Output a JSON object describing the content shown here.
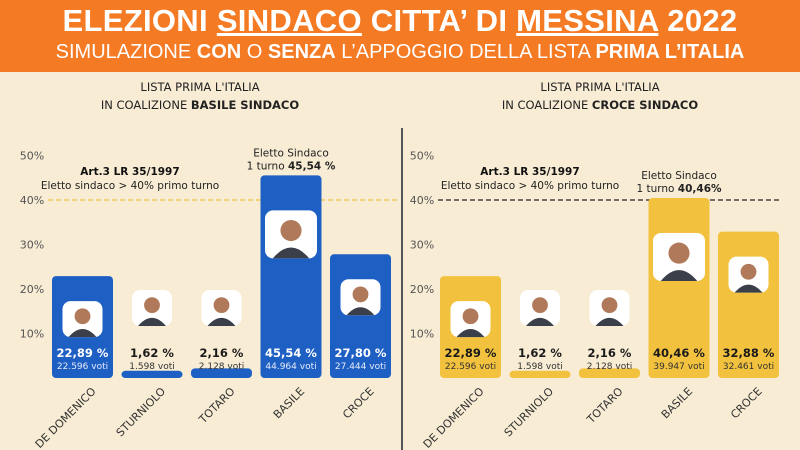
{
  "header": {
    "title": [
      {
        "text": "ELEZIONI ",
        "u": false
      },
      {
        "text": "SINDACO",
        "u": true
      },
      {
        "text": " CITTA’ DI ",
        "u": false
      },
      {
        "text": "MESSINA",
        "u": true
      },
      {
        "text": " 2022",
        "u": false
      }
    ],
    "subtitle": [
      {
        "text": "SIMULAZIONE ",
        "b": false
      },
      {
        "text": "CON",
        "b": true
      },
      {
        "text": " O ",
        "b": false
      },
      {
        "text": "SENZA",
        "b": true
      },
      {
        "text": " L’APPOGGIO ",
        "b": false
      },
      {
        "text": "DELLA LISTA ",
        "b": false
      },
      {
        "text": "PRIMA L’ITALIA",
        "b": true
      }
    ]
  },
  "colors": {
    "header": "#f47a24",
    "blue": "#1e5fc4",
    "yellow": "#f2c23e",
    "background": "#f8ecd4"
  },
  "chart_data": [
    {
      "type": "bar",
      "title_line1": "LISTA PRIMA L'ITALIA",
      "title_line2": "IN COALIZIONE ",
      "title_bold": "BASILE SINDACO",
      "categories": [
        "DE DOMENICO",
        "STURNIOLO",
        "TOTARO",
        "BASILE",
        "CROCE"
      ],
      "values": [
        22.89,
        1.62,
        2.16,
        45.54,
        27.8
      ],
      "value_labels": [
        "22,89 %",
        "1,62 %",
        "2,16 %",
        "45,54 %",
        "27,80 %"
      ],
      "vote_labels": [
        "22.596 voti",
        "1.598 voti",
        "2.128 voti",
        "44.964 voti",
        "27.444 voti"
      ],
      "yticks": [
        "10%",
        "20%",
        "30%",
        "40%",
        "50%"
      ],
      "ylim": [
        0,
        50
      ],
      "threshold": 40,
      "threshold_title": "Art.3 LR 35/1997",
      "threshold_text": "Eletto sindaco > 40% primo turno",
      "winner_line1": "Eletto Sindaco",
      "winner_line2": "1 turno ",
      "winner_value": "45,54 %",
      "bar_color": "#1e5fc4",
      "line_color": "#f2c23e"
    },
    {
      "type": "bar",
      "title_line1": "LISTA PRIMA L'ITALIA",
      "title_line2": "IN COALIZIONE ",
      "title_bold": "CROCE SINDACO",
      "categories": [
        "DE DOMENICO",
        "STURNIOLO",
        "TOTARO",
        "BASILE",
        "CROCE"
      ],
      "values": [
        22.89,
        1.62,
        2.16,
        40.46,
        32.88
      ],
      "value_labels": [
        "22,89 %",
        "1,62 %",
        "2,16 %",
        "40,46 %",
        "32,88 %"
      ],
      "vote_labels": [
        "22.596 voti",
        "1.598 voti",
        "2.128 voti",
        "39.947 voti",
        "32.461 voti"
      ],
      "yticks": [
        "10%",
        "20%",
        "30%",
        "40%",
        "50%"
      ],
      "ylim": [
        0,
        50
      ],
      "threshold": 40,
      "threshold_title": "Art.3 LR 35/1997",
      "threshold_text": "Eletto sindaco > 40% primo turno",
      "winner_line1": "Eletto Sindaco",
      "winner_line2": "1 turno ",
      "winner_value": "40,46%",
      "bar_color": "#f2c23e",
      "line_color": "#222222"
    }
  ]
}
